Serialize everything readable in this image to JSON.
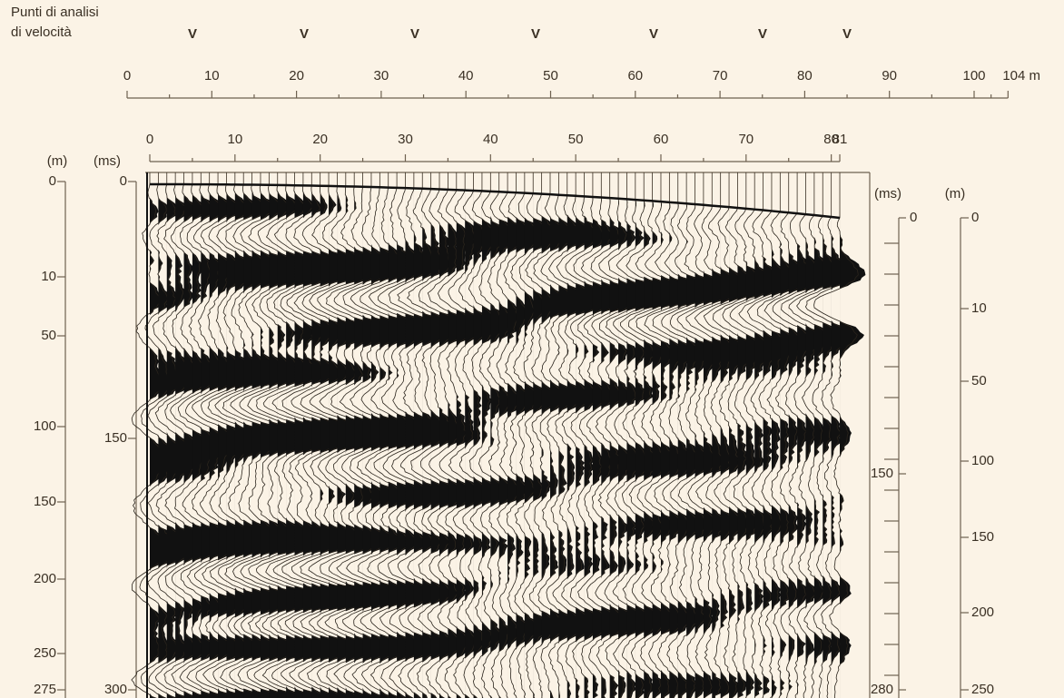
{
  "header": {
    "label_lines": [
      "Punti di analisi",
      "di velocità"
    ],
    "markers": [
      "V",
      "V",
      "V",
      "V",
      "V",
      "V",
      "V"
    ]
  },
  "distance_axis": {
    "ticks": [
      0,
      10,
      20,
      30,
      40,
      50,
      60,
      70,
      80,
      90,
      100,
      {
        "value": 104,
        "label": "104 m"
      }
    ]
  },
  "trace_axis": {
    "ticks": [
      0,
      10,
      20,
      30,
      40,
      50,
      60,
      70,
      80,
      81
    ]
  },
  "left_depth_axis": {
    "unit": "(m)",
    "ticks": [
      0,
      10,
      50,
      100,
      150,
      200,
      250,
      275
    ]
  },
  "left_time_axis": {
    "unit": "(ms)",
    "ticks": [
      0,
      150,
      300
    ]
  },
  "right_time_axis": {
    "unit": "(ms)",
    "ticks": [
      0,
      150,
      280
    ]
  },
  "right_depth_axis": {
    "unit": "(m)",
    "ticks": [
      0,
      10,
      50,
      100,
      150,
      200,
      250
    ]
  }
}
